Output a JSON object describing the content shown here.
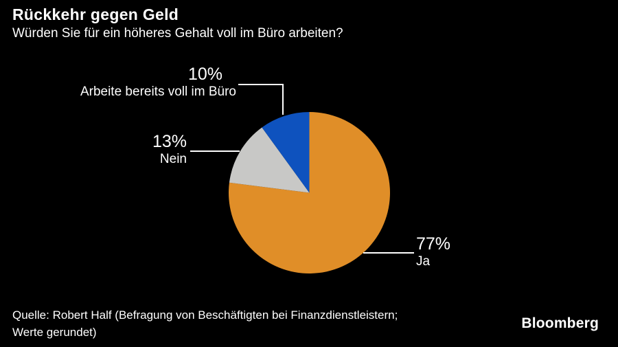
{
  "header": {
    "title": "Rückkehr gegen Geld",
    "subtitle": "Würden Sie für ein höheres Gehalt voll im Büro arbeiten?"
  },
  "chart_data": {
    "type": "pie",
    "title": "Rückkehr gegen Geld",
    "subtitle": "Würden Sie für ein höheres Gehalt voll im Büro arbeiten?",
    "categories": [
      "Ja",
      "Nein",
      "Arbeite bereits voll im Büro"
    ],
    "values": [
      77,
      13,
      10
    ],
    "unit": "%",
    "colors": [
      "#E08E28",
      "#C8C8C6",
      "#0E52BE"
    ],
    "start_angle": "12-oclock",
    "direction": "clockwise",
    "legend": "none",
    "label_style": "external callouts with white leader lines"
  },
  "callouts": {
    "office": {
      "pct": "10%",
      "label": "Arbeite bereits voll im Büro"
    },
    "nein": {
      "pct": "13%",
      "label": "Nein"
    },
    "ja": {
      "pct": "77%",
      "label": "Ja"
    }
  },
  "footer": {
    "source_line1": "Quelle: Robert Half (Befragung von Beschäftigten bei Finanzdienstleistern;",
    "source_line2": "Werte gerundet)",
    "brand": "Bloomberg"
  },
  "colors": {
    "background": "#000000",
    "text": "#FFFFFF",
    "slice_ja": "#E08E28",
    "slice_nein": "#C8C8C6",
    "slice_office": "#0E52BE",
    "leader_line": "#FFFFFF"
  }
}
